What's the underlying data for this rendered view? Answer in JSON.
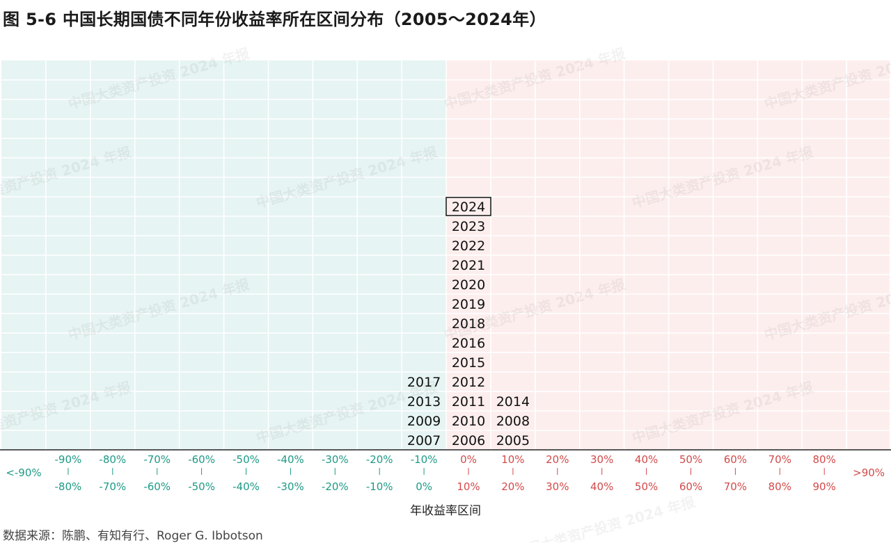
{
  "title": "图 5-6   中国长期国债不同年份收益率所在区间分布（2005～2024年）",
  "source": "数据来源：陈鹏、有知有行、Roger G. Ibbotson",
  "watermark": "中国大类资产投资 2024 年报",
  "colors": {
    "negative_bg": "#e6f4f3",
    "positive_bg": "#fdeeee",
    "negative_text": "#1e9a86",
    "positive_text": "#d24a4a",
    "axis": "#222222",
    "year_text": "#111111"
  },
  "chart_data": {
    "type": "table",
    "xlabel": "年收益率区间",
    "bins": [
      {
        "label_top": "<-90%",
        "label_bottom": "",
        "sign": "neg",
        "years": []
      },
      {
        "label_top": "-90%",
        "label_bottom": "-80%",
        "sign": "neg",
        "years": []
      },
      {
        "label_top": "-80%",
        "label_bottom": "-70%",
        "sign": "neg",
        "years": []
      },
      {
        "label_top": "-70%",
        "label_bottom": "-60%",
        "sign": "neg",
        "years": []
      },
      {
        "label_top": "-60%",
        "label_bottom": "-50%",
        "sign": "neg",
        "years": []
      },
      {
        "label_top": "-50%",
        "label_bottom": "-40%",
        "sign": "neg",
        "years": []
      },
      {
        "label_top": "-40%",
        "label_bottom": "-30%",
        "sign": "neg",
        "years": []
      },
      {
        "label_top": "-30%",
        "label_bottom": "-20%",
        "sign": "neg",
        "years": []
      },
      {
        "label_top": "-20%",
        "label_bottom": "-10%",
        "sign": "neg",
        "years": []
      },
      {
        "label_top": "-10%",
        "label_bottom": "0%",
        "sign": "neg",
        "years": [
          "2007",
          "2009",
          "2013",
          "2017"
        ]
      },
      {
        "label_top": "0%",
        "label_bottom": "10%",
        "sign": "pos",
        "years": [
          "2006",
          "2010",
          "2011",
          "2012",
          "2015",
          "2016",
          "2018",
          "2019",
          "2020",
          "2021",
          "2022",
          "2023",
          "2024"
        ]
      },
      {
        "label_top": "10%",
        "label_bottom": "20%",
        "sign": "pos",
        "years": [
          "2005",
          "2008",
          "2014"
        ]
      },
      {
        "label_top": "20%",
        "label_bottom": "30%",
        "sign": "pos",
        "years": []
      },
      {
        "label_top": "30%",
        "label_bottom": "40%",
        "sign": "pos",
        "years": []
      },
      {
        "label_top": "40%",
        "label_bottom": "50%",
        "sign": "pos",
        "years": []
      },
      {
        "label_top": "50%",
        "label_bottom": "60%",
        "sign": "pos",
        "years": []
      },
      {
        "label_top": "60%",
        "label_bottom": "70%",
        "sign": "pos",
        "years": []
      },
      {
        "label_top": "70%",
        "label_bottom": "80%",
        "sign": "pos",
        "years": []
      },
      {
        "label_top": "80%",
        "label_bottom": "90%",
        "sign": "pos",
        "years": []
      },
      {
        "label_top": ">90%",
        "label_bottom": "",
        "sign": "pos",
        "years": []
      }
    ],
    "highlighted_year": "2024",
    "grid": true
  }
}
